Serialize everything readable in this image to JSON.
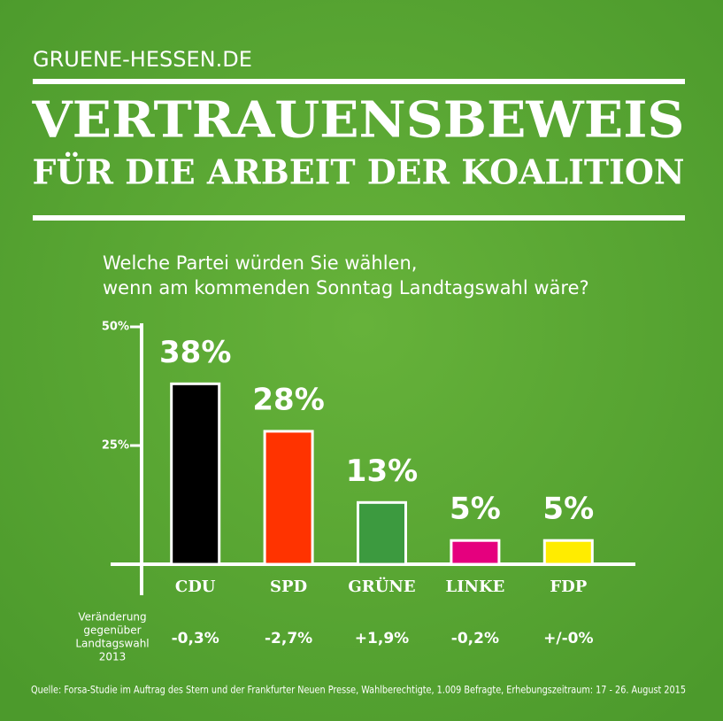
{
  "header": {
    "site": "GRUENE-HESSEN.DE",
    "title_lines": [
      "VERTRAUENSBEWEIS",
      "FÜR DIE ARBEIT DER KOALITION"
    ]
  },
  "chart_data": {
    "type": "bar",
    "question_lines": [
      "Welche Partei würden Sie wählen,",
      "wenn am kommenden Sonntag Landtagswahl wäre?"
    ],
    "categories": [
      "CDU",
      "SPD",
      "GRÜNE",
      "LINKE",
      "FDP"
    ],
    "values": [
      38,
      28,
      13,
      5,
      5
    ],
    "value_labels": [
      "38%",
      "28%",
      "13%",
      "5%",
      "5%"
    ],
    "colors": [
      "#000000",
      "#ff3300",
      "#3c9a3f",
      "#e5007e",
      "#ffec00"
    ],
    "ylim": [
      0,
      50
    ],
    "yticks": [
      {
        "value": 25,
        "label": "25%"
      },
      {
        "value": 50,
        "label": "50%"
      }
    ],
    "change_caption": [
      "Veränderung",
      "gegenüber",
      "Landtagswahl",
      "2013"
    ],
    "change_labels": [
      "-0,3%",
      "-2,7%",
      "+1,9%",
      "-0,2%",
      "+/-0%"
    ]
  },
  "footer": {
    "source": "Quelle: Forsa-Studie im Auftrag des Stern und der Frankfurter Neuen Presse, Wahlberechtigte, 1.009 Befragte, Erhebungszeitraum: 17 - 26. August 2015"
  }
}
